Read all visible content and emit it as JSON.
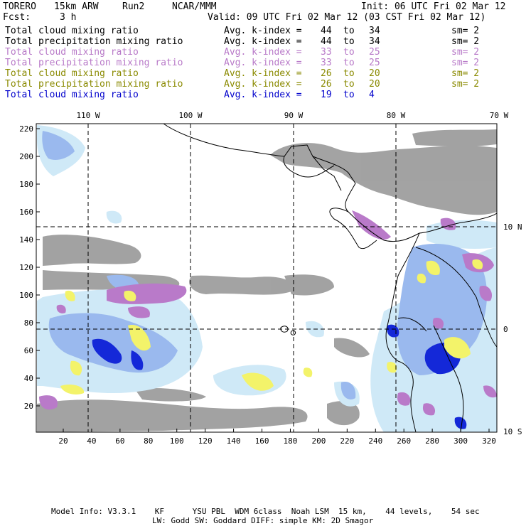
{
  "header": {
    "model": "TORERO",
    "resolution": "15km ARW",
    "run": "Run2",
    "org": "NCAR/MMM",
    "init": "Init: 06 UTC Fri 02 Mar 12",
    "fcst_label": "Fcst:",
    "fcst_value": "3 h",
    "valid": "Valid: 09 UTC Fri 02 Mar 12 (03 CST Fri 02 Mar 12)"
  },
  "layers": [
    {
      "field": "Total cloud mixing ratio",
      "index": "Avg. k-index =",
      "from": "44",
      "to_word": "to",
      "to": "34",
      "sm": "sm= 2",
      "color": "#000000"
    },
    {
      "field": "Total precipitation mixing ratio",
      "index": "Avg. k-index =",
      "from": "44",
      "to_word": "to",
      "to": "34",
      "sm": "sm= 2",
      "color": "#000000"
    },
    {
      "field": "Total cloud mixing ratio",
      "index": "Avg. k-index =",
      "from": "33",
      "to_word": "to",
      "to": "25",
      "sm": "sm= 2",
      "color": "#b879c8"
    },
    {
      "field": "Total precipitation mixing ratio",
      "index": "Avg. k-index =",
      "from": "33",
      "to_word": "to",
      "to": "25",
      "sm": "sm= 2",
      "color": "#b879c8"
    },
    {
      "field": "Total cloud mixing ratio",
      "index": "Avg. k-index =",
      "from": "26",
      "to_word": "to",
      "to": "20",
      "sm": "sm= 2",
      "color": "#8a8a00"
    },
    {
      "field": "Total precipitation mixing ratio",
      "index": "Avg. k-index =",
      "from": "26",
      "to_word": "to",
      "to": "20",
      "sm": "sm= 2",
      "color": "#8a8a00"
    },
    {
      "field": "Total cloud mixing ratio",
      "index": "Avg. k-index =",
      "from": "19",
      "to_word": "to",
      "to": "4",
      "sm": "",
      "color": "#0000cc"
    }
  ],
  "map": {
    "top_lon_labels": [
      "110 W",
      "100 W",
      "90 W",
      "80 W",
      "70 W"
    ],
    "right_lat_labels": [
      "10 N",
      "0",
      "10 S"
    ],
    "y_ticks": [
      "220",
      "200",
      "180",
      "160",
      "140",
      "120",
      "100",
      "80",
      "60",
      "40",
      "20"
    ],
    "x_ticks": [
      "20",
      "40",
      "60",
      "80",
      "100",
      "120",
      "140",
      "160",
      "180",
      "200",
      "220",
      "240",
      "260",
      "280",
      "300",
      "320"
    ],
    "colors": {
      "gray_cloud": "#9e9e9e",
      "light_blue": "#cfe9f7",
      "mid_blue": "#9ab9ee",
      "deep_blue": "#1428d8",
      "purple": "#b97ac9",
      "yellow": "#f3f36a"
    }
  },
  "footer": {
    "line1": "Model Info: V3.3.1    KF      YSU PBL  WDM 6class  Noah LSM  15 km,    44 levels,    54 sec",
    "line2": "LW: Godd SW: Goddard DIFF: simple KM: 2D Smagor"
  }
}
